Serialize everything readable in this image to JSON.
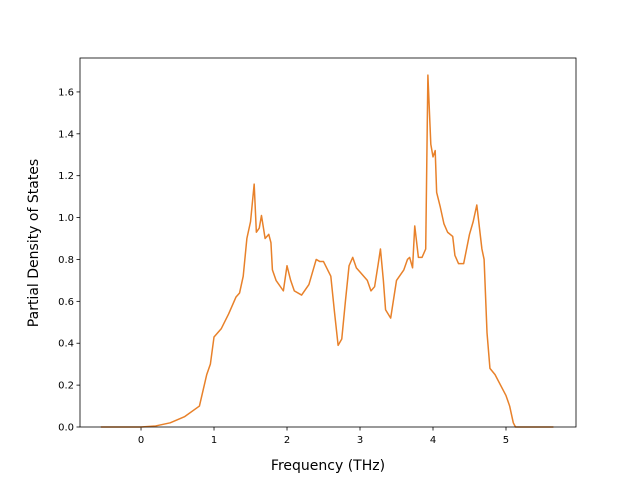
{
  "chart_data": {
    "type": "line",
    "x_label": "Frequency (THz)",
    "y_label": "Partial Density of States",
    "xlim": [
      -0.836,
      5.959
    ],
    "ylim": [
      0,
      1.762
    ],
    "xticks": [
      0,
      1,
      2,
      3,
      4,
      5
    ],
    "yticks": [
      {
        "value": 0,
        "label": "0.0"
      },
      {
        "value": 0.2,
        "label": "0.2"
      },
      {
        "value": 0.4,
        "label": "0.4"
      },
      {
        "value": 0.6,
        "label": "0.6"
      },
      {
        "value": 0.8,
        "label": "0.8"
      },
      {
        "value": 1.0,
        "label": "1.0"
      },
      {
        "value": 1.2,
        "label": "1.2"
      },
      {
        "value": 1.4,
        "label": "1.4"
      },
      {
        "value": 1.6,
        "label": "1.6"
      }
    ],
    "grid": false,
    "x": [
      -0.55,
      0,
      0.2,
      0.4,
      0.6,
      0.8,
      0.9,
      0.95,
      1.0,
      1.1,
      1.2,
      1.3,
      1.35,
      1.4,
      1.45,
      1.5,
      1.55,
      1.58,
      1.62,
      1.65,
      1.7,
      1.75,
      1.78,
      1.8,
      1.85,
      1.95,
      2.0,
      2.05,
      2.1,
      2.2,
      2.3,
      2.4,
      2.45,
      2.5,
      2.6,
      2.65,
      2.7,
      2.75,
      2.8,
      2.85,
      2.9,
      2.95,
      3.0,
      3.1,
      3.15,
      3.2,
      3.25,
      3.28,
      3.32,
      3.35,
      3.42,
      3.5,
      3.6,
      3.65,
      3.68,
      3.72,
      3.75,
      3.8,
      3.85,
      3.9,
      3.93,
      3.97,
      4.0,
      4.03,
      4.05,
      4.1,
      4.15,
      4.2,
      4.27,
      4.3,
      4.35,
      4.42,
      4.5,
      4.55,
      4.6,
      4.67,
      4.7,
      4.74,
      4.78,
      4.85,
      5.0,
      5.05,
      5.1,
      5.13,
      5.65
    ],
    "series": [
      {
        "color": "#e8812a",
        "values": [
          0,
          0,
          0.005,
          0.02,
          0.05,
          0.1,
          0.25,
          0.3,
          0.43,
          0.47,
          0.54,
          0.62,
          0.64,
          0.72,
          0.9,
          0.98,
          1.16,
          0.93,
          0.95,
          1.01,
          0.9,
          0.92,
          0.88,
          0.75,
          0.7,
          0.65,
          0.77,
          0.7,
          0.65,
          0.63,
          0.68,
          0.8,
          0.79,
          0.79,
          0.72,
          0.55,
          0.39,
          0.42,
          0.6,
          0.77,
          0.81,
          0.76,
          0.74,
          0.7,
          0.65,
          0.67,
          0.78,
          0.85,
          0.7,
          0.56,
          0.52,
          0.7,
          0.75,
          0.8,
          0.81,
          0.76,
          0.96,
          0.81,
          0.81,
          0.85,
          1.68,
          1.35,
          1.29,
          1.32,
          1.12,
          1.05,
          0.97,
          0.93,
          0.91,
          0.82,
          0.78,
          0.78,
          0.92,
          0.98,
          1.06,
          0.85,
          0.8,
          0.45,
          0.28,
          0.25,
          0.15,
          0.1,
          0.02,
          0,
          0
        ]
      }
    ]
  }
}
